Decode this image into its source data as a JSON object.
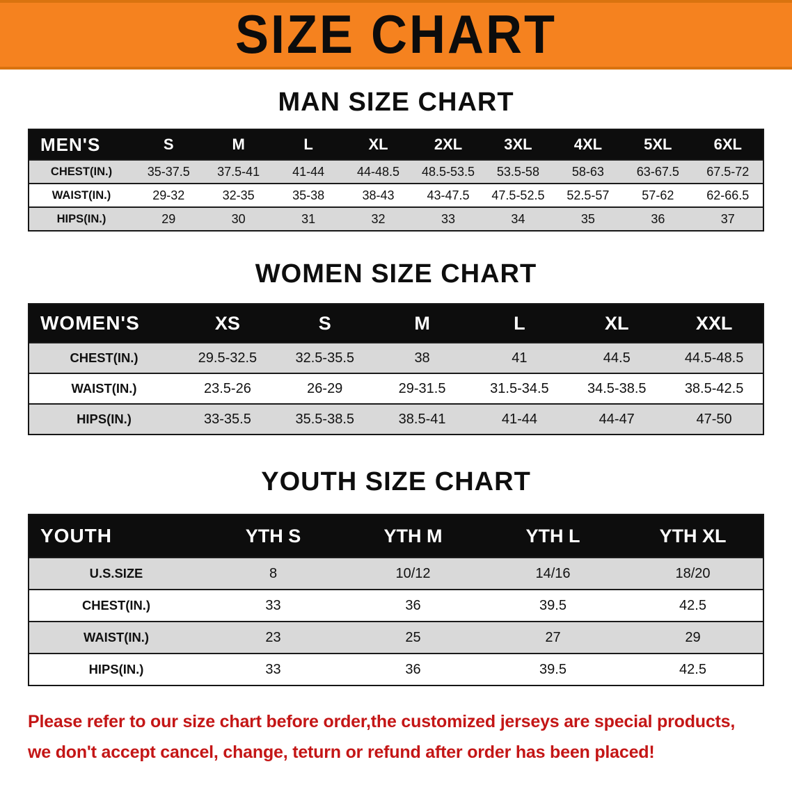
{
  "banner": {
    "title": "SIZE CHART"
  },
  "sections": [
    {
      "id": "men",
      "heading": "MAN SIZE CHART",
      "corner_label": "MEN'S",
      "columns": [
        "S",
        "M",
        "L",
        "XL",
        "2XL",
        "3XL",
        "4XL",
        "5XL",
        "6XL"
      ],
      "rows": [
        {
          "label": "CHEST(IN.)",
          "values": [
            "35-37.5",
            "37.5-41",
            "41-44",
            "44-48.5",
            "48.5-53.5",
            "53.5-58",
            "58-63",
            "63-67.5",
            "67.5-72"
          ]
        },
        {
          "label": "WAIST(IN.)",
          "values": [
            "29-32",
            "32-35",
            "35-38",
            "38-43",
            "43-47.5",
            "47.5-52.5",
            "52.5-57",
            "57-62",
            "62-66.5"
          ]
        },
        {
          "label": "HIPS(IN.)",
          "values": [
            "29",
            "30",
            "31",
            "32",
            "33",
            "34",
            "35",
            "36",
            "37"
          ]
        }
      ]
    },
    {
      "id": "women",
      "heading": "WOMEN SIZE CHART",
      "corner_label": "WOMEN'S",
      "columns": [
        "XS",
        "S",
        "M",
        "L",
        "XL",
        "XXL"
      ],
      "rows": [
        {
          "label": "CHEST(IN.)",
          "values": [
            "29.5-32.5",
            "32.5-35.5",
            "38",
            "41",
            "44.5",
            "44.5-48.5"
          ]
        },
        {
          "label": "WAIST(IN.)",
          "values": [
            "23.5-26",
            "26-29",
            "29-31.5",
            "31.5-34.5",
            "34.5-38.5",
            "38.5-42.5"
          ]
        },
        {
          "label": "HIPS(IN.)",
          "values": [
            "33-35.5",
            "35.5-38.5",
            "38.5-41",
            "41-44",
            "44-47",
            "47-50"
          ]
        }
      ]
    },
    {
      "id": "youth",
      "heading": "YOUTH SIZE CHART",
      "corner_label": "YOUTH",
      "columns": [
        "YTH S",
        "YTH M",
        "YTH L",
        "YTH XL"
      ],
      "rows": [
        {
          "label": "U.S.SIZE",
          "values": [
            "8",
            "10/12",
            "14/16",
            "18/20"
          ]
        },
        {
          "label": "CHEST(IN.)",
          "values": [
            "33",
            "36",
            "39.5",
            "42.5"
          ]
        },
        {
          "label": "WAIST(IN.)",
          "values": [
            "23",
            "25",
            "27",
            "29"
          ]
        },
        {
          "label": "HIPS(IN.)",
          "values": [
            "33",
            "36",
            "39.5",
            "42.5"
          ]
        }
      ]
    }
  ],
  "footer": {
    "line1": "Please refer to our size chart before order,the customized jerseys are special products,",
    "line2": "we don't accept cancel, change, teturn or refund after order has been placed!"
  },
  "colors": {
    "banner_orange": "#f5821f",
    "table_header_black": "#0d0d0d",
    "stripe_gray": "#d9d9d9",
    "footer_red": "#c41616"
  }
}
